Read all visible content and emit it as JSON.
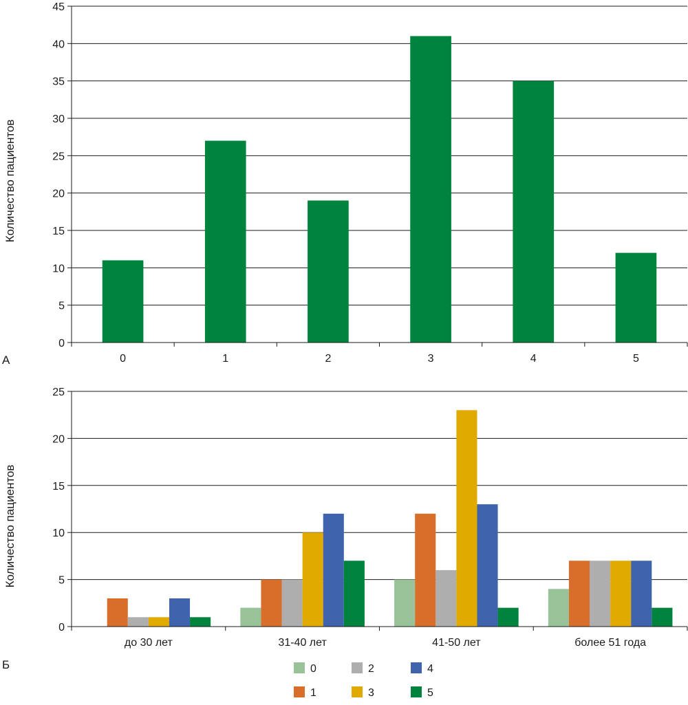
{
  "chart_data": [
    {
      "type": "bar",
      "panel_label": "А",
      "categories": [
        "0",
        "1",
        "2",
        "3",
        "4",
        "5"
      ],
      "values": [
        11,
        27,
        19,
        41,
        35,
        12
      ],
      "ylabel": "Количество пациентов",
      "xlabel": "",
      "ylim": [
        0,
        45
      ],
      "yticks": [
        "0",
        "5",
        "10",
        "15",
        "20",
        "25",
        "30",
        "35",
        "40",
        "45"
      ],
      "ytick_values": [
        0,
        5,
        10,
        15,
        20,
        25,
        30,
        35,
        40,
        45
      ],
      "grid": true,
      "bar_color": "#00843d"
    },
    {
      "type": "bar",
      "panel_label": "Б",
      "categories": [
        "до 30 лет",
        "31-40 лет",
        "41-50 лет",
        "более 51 года"
      ],
      "series": [
        {
          "name": "0",
          "values": [
            0,
            2,
            5,
            4
          ],
          "color": "#98c399"
        },
        {
          "name": "1",
          "values": [
            3,
            5,
            12,
            7
          ],
          "color": "#d86e2a"
        },
        {
          "name": "2",
          "values": [
            1,
            5,
            6,
            7
          ],
          "color": "#aeaeae"
        },
        {
          "name": "3",
          "values": [
            1,
            10,
            23,
            7
          ],
          "color": "#e1aa00"
        },
        {
          "name": "4",
          "values": [
            3,
            12,
            13,
            7
          ],
          "color": "#3f64ad"
        },
        {
          "name": "5",
          "values": [
            1,
            7,
            2,
            2
          ],
          "color": "#00843d"
        }
      ],
      "ylabel": "Количество пациентов",
      "xlabel": "",
      "ylim": [
        0,
        25
      ],
      "yticks": [
        "0",
        "5",
        "10",
        "15",
        "20",
        "25"
      ],
      "ytick_values": [
        0,
        5,
        10,
        15,
        20,
        25
      ],
      "grid": true,
      "legend_position": "bottom-center"
    }
  ]
}
